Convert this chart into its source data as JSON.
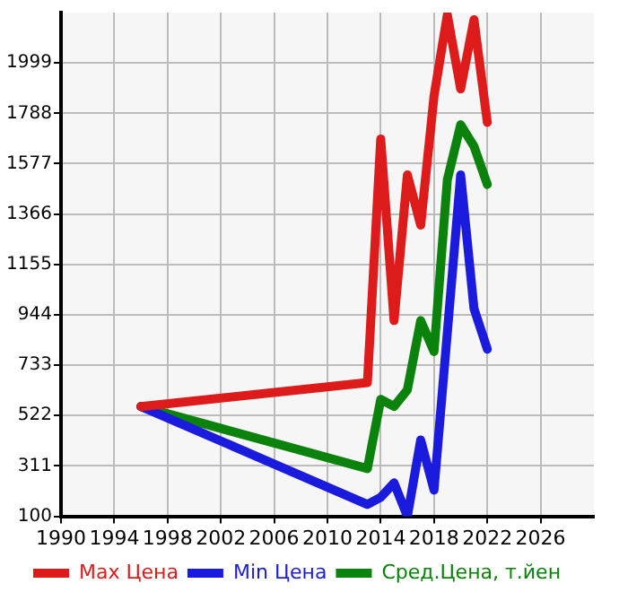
{
  "chart_data": {
    "type": "line",
    "x": [
      1996,
      2013,
      2014,
      2015,
      2016,
      2017,
      2018,
      2019,
      2020,
      2021,
      2022
    ],
    "xlim": [
      1990,
      2030
    ],
    "xticks": [
      1990,
      1994,
      1998,
      2002,
      2006,
      2010,
      2014,
      2018,
      2022,
      2026
    ],
    "ylim": [
      100,
      2210
    ],
    "yticks": [
      100,
      311,
      522,
      733,
      944,
      1155,
      1366,
      1577,
      1788,
      1999
    ],
    "grid": true,
    "legend": "bottom",
    "marker": "none",
    "line_style": "solid",
    "series": [
      {
        "name": "Max Цена",
        "color": "#dd1b1b",
        "values": [
          560,
          660,
          1680,
          920,
          1530,
          1320,
          1860,
          2200,
          1890,
          2180,
          1750
        ]
      },
      {
        "name": "Min Цена",
        "color": "#1b1bdd",
        "values": [
          560,
          150,
          180,
          240,
          100,
          420,
          210,
          null,
          1530,
          970,
          800
        ]
      },
      {
        "name": "Сред.Цена, т.йен",
        "color": "#0b820b",
        "values": [
          560,
          300,
          590,
          560,
          630,
          920,
          790,
          1510,
          1740,
          1650,
          1490
        ]
      }
    ]
  }
}
